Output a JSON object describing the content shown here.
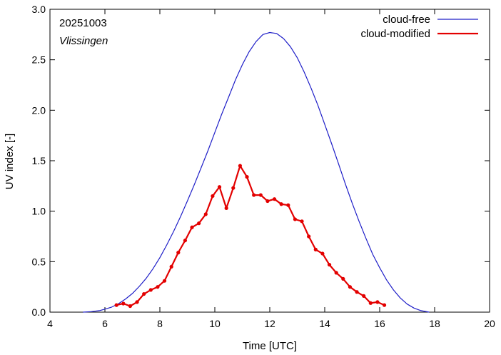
{
  "chart_data": {
    "type": "line",
    "annotation": {
      "date": "20251003",
      "location": "Vlissingen"
    },
    "xlabel": "Time  [UTC]",
    "ylabel": "UV index  [-]",
    "xlim": [
      4,
      20
    ],
    "ylim": [
      0,
      3.0
    ],
    "xticks": [
      {
        "value": 4,
        "label": "4"
      },
      {
        "value": 6,
        "label": "6"
      },
      {
        "value": 8,
        "label": "8"
      },
      {
        "value": 10,
        "label": "10"
      },
      {
        "value": 12,
        "label": "12"
      },
      {
        "value": 14,
        "label": "14"
      },
      {
        "value": 16,
        "label": "16"
      },
      {
        "value": 18,
        "label": "18"
      },
      {
        "value": 20,
        "label": "20"
      }
    ],
    "yticks": [
      {
        "value": 0,
        "label": "0.0"
      },
      {
        "value": 0.5,
        "label": "0.5"
      },
      {
        "value": 1.0,
        "label": "1.0"
      },
      {
        "value": 1.5,
        "label": "1.5"
      },
      {
        "value": 2.0,
        "label": "2.0"
      },
      {
        "value": 2.5,
        "label": "2.5"
      },
      {
        "value": 3.0,
        "label": "3.0"
      }
    ],
    "legend_position": "top-right",
    "series": [
      {
        "name": "cloud-free",
        "color": "#1f1fc8",
        "markers": false,
        "x": [
          5.2,
          5.5,
          5.8,
          6.0,
          6.25,
          6.5,
          6.75,
          7.0,
          7.25,
          7.5,
          7.75,
          8.0,
          8.25,
          8.5,
          8.75,
          9.0,
          9.25,
          9.5,
          9.75,
          10.0,
          10.25,
          10.5,
          10.75,
          11.0,
          11.25,
          11.5,
          11.75,
          12.0,
          12.25,
          12.5,
          12.75,
          13.0,
          13.25,
          13.5,
          13.75,
          14.0,
          14.25,
          14.5,
          14.75,
          15.0,
          15.25,
          15.5,
          15.75,
          16.0,
          16.25,
          16.5,
          16.75,
          17.0,
          17.25,
          17.5,
          17.8
        ],
        "y": [
          0.0,
          0.005,
          0.015,
          0.03,
          0.05,
          0.085,
          0.13,
          0.185,
          0.255,
          0.335,
          0.43,
          0.54,
          0.665,
          0.8,
          0.945,
          1.1,
          1.26,
          1.43,
          1.6,
          1.78,
          1.96,
          2.13,
          2.3,
          2.45,
          2.58,
          2.68,
          2.75,
          2.77,
          2.76,
          2.71,
          2.63,
          2.52,
          2.38,
          2.22,
          2.05,
          1.86,
          1.67,
          1.47,
          1.27,
          1.08,
          0.9,
          0.73,
          0.57,
          0.44,
          0.32,
          0.22,
          0.14,
          0.08,
          0.04,
          0.015,
          0.0
        ]
      },
      {
        "name": "cloud-modified",
        "color": "#e30000",
        "markers": true,
        "x": [
          6.42,
          6.67,
          6.92,
          7.17,
          7.42,
          7.67,
          7.92,
          8.17,
          8.42,
          8.67,
          8.92,
          9.17,
          9.42,
          9.67,
          9.92,
          10.17,
          10.42,
          10.67,
          10.92,
          11.17,
          11.42,
          11.67,
          11.92,
          12.17,
          12.42,
          12.67,
          12.92,
          13.17,
          13.42,
          13.67,
          13.92,
          14.17,
          14.42,
          14.67,
          14.92,
          15.17,
          15.42,
          15.67,
          15.92,
          16.17
        ],
        "y": [
          0.07,
          0.085,
          0.06,
          0.1,
          0.18,
          0.22,
          0.25,
          0.31,
          0.45,
          0.59,
          0.71,
          0.84,
          0.88,
          0.97,
          1.15,
          1.24,
          1.03,
          1.23,
          1.45,
          1.34,
          1.16,
          1.16,
          1.1,
          1.12,
          1.07,
          1.06,
          0.92,
          0.9,
          0.75,
          0.62,
          0.58,
          0.47,
          0.39,
          0.33,
          0.25,
          0.2,
          0.16,
          0.09,
          0.1,
          0.07
        ]
      }
    ]
  }
}
